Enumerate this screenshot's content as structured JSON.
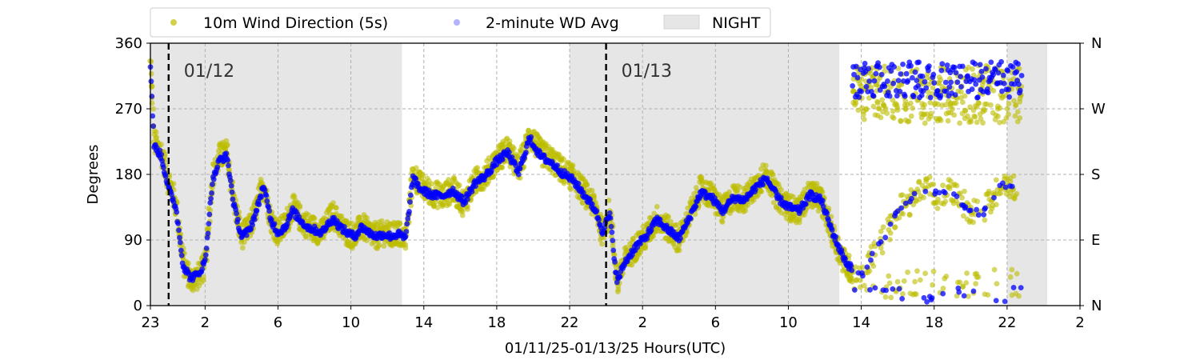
{
  "chart_data": {
    "type": "scatter",
    "ylabel": "Degrees",
    "xlabel": "01/11/25-01/13/25  Hours(UTC)",
    "xlim_hours": [
      0,
      51
    ],
    "ylim": [
      0,
      360
    ],
    "x_ticks": [
      {
        "h": 0,
        "label": "23"
      },
      {
        "h": 3,
        "label": "2"
      },
      {
        "h": 7,
        "label": "6"
      },
      {
        "h": 11,
        "label": "10"
      },
      {
        "h": 15,
        "label": "14"
      },
      {
        "h": 19,
        "label": "18"
      },
      {
        "h": 23,
        "label": "22"
      },
      {
        "h": 27,
        "label": "2"
      },
      {
        "h": 31,
        "label": "6"
      },
      {
        "h": 35,
        "label": "10"
      },
      {
        "h": 39,
        "label": "14"
      },
      {
        "h": 43,
        "label": "18"
      },
      {
        "h": 47,
        "label": "22"
      },
      {
        "h": 51,
        "label": "2"
      }
    ],
    "y_ticks": [
      0,
      90,
      180,
      270,
      360
    ],
    "y_ticks_right": [
      {
        "v": 0,
        "label": "N"
      },
      {
        "v": 90,
        "label": "E"
      },
      {
        "v": 180,
        "label": "S"
      },
      {
        "v": 270,
        "label": "W"
      },
      {
        "v": 360,
        "label": "N"
      }
    ],
    "grid": true,
    "legend_position": "top",
    "night_ranges_hours": [
      [
        0,
        13.8
      ],
      [
        23.0,
        37.8
      ],
      [
        47.0,
        49.2
      ]
    ],
    "day_markers": [
      {
        "h": 1.0,
        "label": "01/12"
      },
      {
        "h": 25.0,
        "label": "01/13"
      }
    ],
    "series": [
      {
        "name": "10m Wind Direction (5s)",
        "color": "#bdbd00",
        "role": "raw",
        "scatter_deg": 18,
        "profile": [
          [
            0.0,
            330
          ],
          [
            0.2,
            225
          ],
          [
            0.6,
            210
          ],
          [
            1.0,
            170
          ],
          [
            1.4,
            140
          ],
          [
            1.8,
            60
          ],
          [
            2.2,
            35
          ],
          [
            2.6,
            40
          ],
          [
            3.0,
            55
          ],
          [
            3.4,
            175
          ],
          [
            3.8,
            205
          ],
          [
            4.2,
            210
          ],
          [
            4.6,
            140
          ],
          [
            5.0,
            95
          ],
          [
            5.4,
            105
          ],
          [
            5.8,
            130
          ],
          [
            6.2,
            170
          ],
          [
            6.6,
            120
          ],
          [
            7.0,
            100
          ],
          [
            7.4,
            110
          ],
          [
            7.8,
            135
          ],
          [
            8.2,
            120
          ],
          [
            8.6,
            110
          ],
          [
            9.0,
            105
          ],
          [
            9.4,
            100
          ],
          [
            10.0,
            125
          ],
          [
            10.4,
            110
          ],
          [
            10.8,
            100
          ],
          [
            11.2,
            95
          ],
          [
            11.6,
            110
          ],
          [
            12.0,
            100
          ],
          [
            12.4,
            95
          ],
          [
            12.8,
            100
          ],
          [
            13.2,
            95
          ],
          [
            13.6,
            100
          ],
          [
            14.0,
            90
          ],
          [
            14.4,
            180
          ],
          [
            14.8,
            165
          ],
          [
            15.4,
            155
          ],
          [
            16.0,
            150
          ],
          [
            16.6,
            160
          ],
          [
            17.2,
            140
          ],
          [
            17.8,
            170
          ],
          [
            18.4,
            180
          ],
          [
            19.0,
            200
          ],
          [
            19.6,
            215
          ],
          [
            20.2,
            185
          ],
          [
            20.8,
            235
          ],
          [
            21.4,
            210
          ],
          [
            22.0,
            200
          ],
          [
            22.6,
            185
          ],
          [
            23.2,
            175
          ],
          [
            23.8,
            155
          ],
          [
            24.4,
            135
          ],
          [
            24.8,
            100
          ],
          [
            25.2,
            130
          ],
          [
            25.6,
            30
          ],
          [
            26.0,
            60
          ],
          [
            26.6,
            80
          ],
          [
            27.2,
            95
          ],
          [
            27.8,
            120
          ],
          [
            28.4,
            105
          ],
          [
            29.0,
            90
          ],
          [
            29.6,
            125
          ],
          [
            30.2,
            160
          ],
          [
            30.8,
            150
          ],
          [
            31.4,
            130
          ],
          [
            32.0,
            150
          ],
          [
            32.6,
            145
          ],
          [
            33.2,
            165
          ],
          [
            33.8,
            180
          ],
          [
            34.4,
            150
          ],
          [
            35.0,
            135
          ],
          [
            35.6,
            130
          ],
          [
            36.2,
            155
          ],
          [
            36.8,
            145
          ],
          [
            37.4,
            100
          ],
          [
            37.8,
            75
          ],
          [
            38.2,
            55
          ],
          [
            38.6,
            45
          ],
          [
            39.0,
            35
          ],
          [
            39.4,
            60
          ],
          [
            39.8,
            75
          ],
          [
            40.2,
            90
          ],
          [
            40.6,
            110
          ],
          [
            41.0,
            130
          ],
          [
            41.6,
            140
          ],
          [
            42.0,
            155
          ],
          [
            42.6,
            165
          ],
          [
            43.2,
            150
          ],
          [
            43.8,
            160
          ],
          [
            44.4,
            145
          ],
          [
            45.0,
            130
          ],
          [
            45.6,
            125
          ],
          [
            46.2,
            150
          ],
          [
            46.8,
            170
          ],
          [
            47.4,
            160
          ],
          [
            47.8,
            180
          ]
        ]
      },
      {
        "name": "2-minute WD Avg",
        "color": "#0000ff",
        "role": "avg",
        "scatter_deg": 5,
        "profile": [
          [
            0.0,
            330
          ],
          [
            0.2,
            220
          ],
          [
            0.6,
            205
          ],
          [
            1.0,
            160
          ],
          [
            1.4,
            135
          ],
          [
            1.8,
            55
          ],
          [
            2.2,
            38
          ],
          [
            2.6,
            42
          ],
          [
            3.0,
            60
          ],
          [
            3.4,
            170
          ],
          [
            3.8,
            200
          ],
          [
            4.2,
            205
          ],
          [
            4.6,
            135
          ],
          [
            5.0,
            95
          ],
          [
            5.4,
            102
          ],
          [
            5.8,
            128
          ],
          [
            6.2,
            165
          ],
          [
            6.6,
            118
          ],
          [
            7.0,
            100
          ],
          [
            7.4,
            108
          ],
          [
            7.8,
            130
          ],
          [
            8.2,
            118
          ],
          [
            8.6,
            108
          ],
          [
            9.0,
            104
          ],
          [
            9.4,
            100
          ],
          [
            10.0,
            120
          ],
          [
            10.4,
            108
          ],
          [
            10.8,
            100
          ],
          [
            11.2,
            95
          ],
          [
            11.6,
            108
          ],
          [
            12.0,
            100
          ],
          [
            12.4,
            95
          ],
          [
            12.8,
            98
          ],
          [
            13.2,
            95
          ],
          [
            13.6,
            98
          ],
          [
            14.0,
            92
          ],
          [
            14.4,
            175
          ],
          [
            14.8,
            160
          ],
          [
            15.4,
            152
          ],
          [
            16.0,
            150
          ],
          [
            16.6,
            158
          ],
          [
            17.2,
            142
          ],
          [
            17.8,
            168
          ],
          [
            18.4,
            178
          ],
          [
            19.0,
            198
          ],
          [
            19.6,
            210
          ],
          [
            20.2,
            182
          ],
          [
            20.8,
            230
          ],
          [
            21.4,
            205
          ],
          [
            22.0,
            196
          ],
          [
            22.6,
            182
          ],
          [
            23.2,
            172
          ],
          [
            23.8,
            152
          ],
          [
            24.4,
            132
          ],
          [
            24.8,
            102
          ],
          [
            25.2,
            125
          ],
          [
            25.6,
            32
          ],
          [
            26.0,
            58
          ],
          [
            26.6,
            80
          ],
          [
            27.2,
            95
          ],
          [
            27.8,
            118
          ],
          [
            28.4,
            104
          ],
          [
            29.0,
            92
          ],
          [
            29.6,
            122
          ],
          [
            30.2,
            155
          ],
          [
            30.8,
            148
          ],
          [
            31.4,
            130
          ],
          [
            32.0,
            148
          ],
          [
            32.6,
            145
          ],
          [
            33.2,
            162
          ],
          [
            33.8,
            175
          ],
          [
            34.4,
            148
          ],
          [
            35.0,
            135
          ],
          [
            35.6,
            130
          ],
          [
            36.2,
            152
          ],
          [
            36.8,
            145
          ],
          [
            37.4,
            102
          ],
          [
            37.8,
            78
          ],
          [
            38.2,
            58
          ],
          [
            38.6,
            48
          ],
          [
            39.0,
            38
          ],
          [
            39.4,
            60
          ],
          [
            39.8,
            75
          ],
          [
            40.2,
            90
          ],
          [
            40.6,
            108
          ],
          [
            41.0,
            128
          ],
          [
            41.6,
            138
          ],
          [
            42.0,
            152
          ],
          [
            42.6,
            162
          ],
          [
            43.2,
            150
          ],
          [
            43.8,
            158
          ],
          [
            44.4,
            145
          ],
          [
            45.0,
            130
          ],
          [
            45.6,
            125
          ],
          [
            46.2,
            148
          ],
          [
            46.8,
            168
          ],
          [
            47.4,
            158
          ],
          [
            47.8,
            175
          ]
        ]
      },
      {
        "name": "NIGHT",
        "color": "#e6e6e6",
        "role": "night"
      }
    ]
  }
}
